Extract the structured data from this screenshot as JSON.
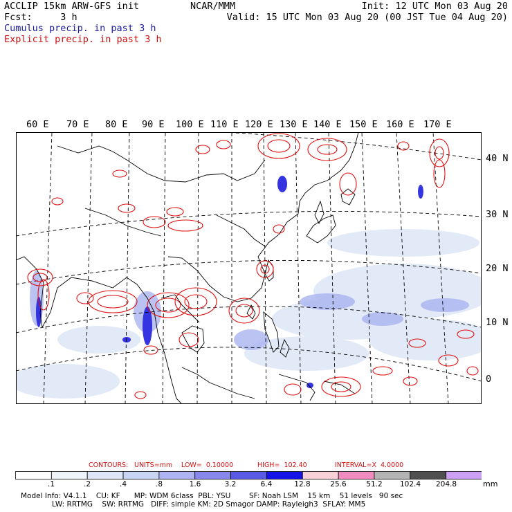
{
  "header": {
    "title": "ACCLIP 15km ARW-GFS init",
    "forecast": "Fcst:     3 h",
    "source": "NCAR/MMM",
    "init": "Init: 12 UTC Mon 03 Aug 20",
    "valid": "Valid: 15 UTC Mon 03 Aug 20 (00 JST Tue 04 Aug 20)",
    "cumulus_label": "Cumulus precip. in past 3 h",
    "explicit_label": "Explicit precip. in past 3 h"
  },
  "map": {
    "longitude_labels": [
      "60 E",
      "70 E",
      "80 E",
      "90 E",
      "100 E",
      "110 E",
      "120 E",
      "130 E",
      "140 E",
      "150 E",
      "160 E",
      "170 E"
    ],
    "latitude_labels": [
      "40 N",
      "30 N",
      "20 N",
      "10 N",
      "0"
    ],
    "colors": {
      "cumulus": "#3a3ae0",
      "explicit": "#e01010",
      "coast": "#000000",
      "grid": "#000000"
    }
  },
  "contours": {
    "label": "CONTOURS:",
    "units": "UNITS=mm",
    "low": "LOW=  0.10000",
    "high": "HIGH=  102.40",
    "interval": "INTERVAL=X  4.0000"
  },
  "colorbar": {
    "unit": "mm",
    "ticks": [
      ".1",
      ".2",
      ".4",
      ".8",
      "1.6",
      "3.2",
      "6.4",
      "12.8",
      "25.6",
      "51.2",
      "102.4",
      "204.8"
    ],
    "colors": [
      "#ffffff",
      "#eef3fa",
      "#dce6f6",
      "#c8d4f4",
      "#aeb4f2",
      "#8888ec",
      "#5a5ae6",
      "#1414e6",
      "#f7d0d8",
      "#f08cc0",
      "#b4b4b4",
      "#505050",
      "#cca0f4"
    ]
  },
  "footer": {
    "line1": "Model Info: V4.1.1    CU: KF      MP: WDM 6class  PBL: YSU        SF: Noah LSM    15 km    51 levels   90 sec",
    "line2": "LW: RRTMG    SW: RRTMG   DIFF: simple KM: 2D Smagor DAMP: Rayleigh3  SFLAY: MM5"
  }
}
